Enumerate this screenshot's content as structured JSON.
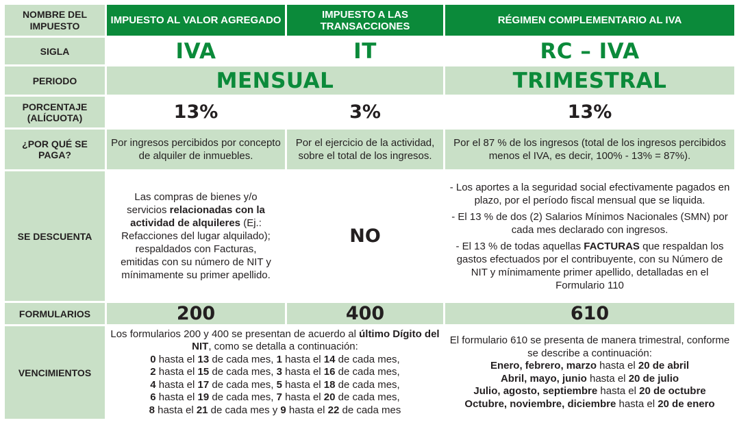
{
  "header": {
    "col0": "NOMBRE DEL IMPUESTO",
    "col1": "IMPUESTO AL VALOR AGREGADO",
    "col2": "IMPUESTO A LAS TRANSACCIONES",
    "col3": "RÉGIMEN COMPLEMENTARIO AL IVA"
  },
  "sigla": {
    "label": "SIGLA",
    "iva": "IVA",
    "it": "IT",
    "rciva": "RC – IVA"
  },
  "periodo": {
    "label": "PERIODO",
    "mensual": "MENSUAL",
    "trimestral": "TRIMESTRAL"
  },
  "porcentaje": {
    "label": "PORCENTAJE (ALÍCUOTA)",
    "iva": "13%",
    "it": "3%",
    "rciva": "13%"
  },
  "porque": {
    "label": "¿POR QUÉ SE PAGA?",
    "iva": "Por ingresos percibidos por concepto de alquiler de inmuebles.",
    "it": "Por el ejercicio de la actividad, sobre el total de los ingresos.",
    "rciva": "Por el 87 % de los ingresos (total de los ingresos percibidos menos el IVA, es decir, 100% - 13% = 87%)."
  },
  "descuenta": {
    "label": "SE DESCUENTA",
    "iva_a": "Las compras de bienes y/o servicios ",
    "iva_b": "relacionadas con la actividad de alquileres",
    "iva_c": " (Ej.: Refacciones del lugar alquilado); respaldados con Facturas, emitidas con su número de NIT y mínimamente su primer apellido.",
    "it": "NO",
    "rc1": "- Los aportes a la seguridad social efectivamente pagados en plazo, por el período fiscal mensual que se liquida.",
    "rc2": "- El 13 % de dos (2) Salarios Mínimos Nacionales (SMN) por cada mes declarado con ingresos.",
    "rc3a": "- El 13 % de todas aquellas ",
    "rc3b": "FACTURAS",
    "rc3c": " que respaldan los gastos efectuados por el contribuyente, con su Número de NIT y mínimamente primer apellido, detalladas en el Formulario 110"
  },
  "formularios": {
    "label": "FORMULARIOS",
    "iva": "200",
    "it": "400",
    "rciva": "610"
  },
  "vencimientos": {
    "label": "VENCIMIENTOS",
    "left_intro_a": "Los formularios 200 y 400 se presentan de acuerdo al ",
    "left_intro_b": "último Dígito del NIT",
    "left_intro_c": ", como se detalla a continuación:",
    "lines": [
      [
        [
          "0",
          true
        ],
        [
          " hasta el ",
          false
        ],
        [
          "13",
          true
        ],
        [
          " de cada mes, ",
          false
        ],
        [
          "1",
          true
        ],
        [
          " hasta el ",
          false
        ],
        [
          "14",
          true
        ],
        [
          " de cada mes,",
          false
        ]
      ],
      [
        [
          "2",
          true
        ],
        [
          " hasta el ",
          false
        ],
        [
          "15",
          true
        ],
        [
          " de cada mes, ",
          false
        ],
        [
          "3",
          true
        ],
        [
          " hasta el ",
          false
        ],
        [
          "16",
          true
        ],
        [
          " de cada mes,",
          false
        ]
      ],
      [
        [
          "4",
          true
        ],
        [
          " hasta el ",
          false
        ],
        [
          "17",
          true
        ],
        [
          " de cada mes, ",
          false
        ],
        [
          "5",
          true
        ],
        [
          " hasta el ",
          false
        ],
        [
          "18",
          true
        ],
        [
          " de cada mes,",
          false
        ]
      ],
      [
        [
          "6",
          true
        ],
        [
          " hasta el ",
          false
        ],
        [
          "19",
          true
        ],
        [
          " de cada mes, ",
          false
        ],
        [
          "7",
          true
        ],
        [
          " hasta el ",
          false
        ],
        [
          "20",
          true
        ],
        [
          " de cada mes,",
          false
        ]
      ],
      [
        [
          "8",
          true
        ],
        [
          " hasta el ",
          false
        ],
        [
          "21",
          true
        ],
        [
          " de cada mes y ",
          false
        ],
        [
          "9",
          true
        ],
        [
          " hasta el ",
          false
        ],
        [
          "22",
          true
        ],
        [
          " de cada mes",
          false
        ]
      ]
    ],
    "right_intro": "El formulario 610 se presenta de manera trimestral, conforme se describe a continuación:",
    "right_lines": [
      [
        [
          "Enero, febrero, marzo",
          true
        ],
        [
          " hasta el ",
          false
        ],
        [
          "20 de abril",
          true
        ]
      ],
      [
        [
          "Abril, mayo, junio",
          true
        ],
        [
          " hasta el ",
          false
        ],
        [
          "20 de julio",
          true
        ]
      ],
      [
        [
          "Julio, agosto, septiembre",
          true
        ],
        [
          " hasta el ",
          false
        ],
        [
          "20 de octubre",
          true
        ]
      ],
      [
        [
          "Octubre, noviembre, diciembre",
          true
        ],
        [
          " hasta el ",
          false
        ],
        [
          "20 de enero",
          true
        ]
      ]
    ]
  },
  "colors": {
    "green": "#0b8a3a",
    "light_green": "#c9e0c7"
  }
}
